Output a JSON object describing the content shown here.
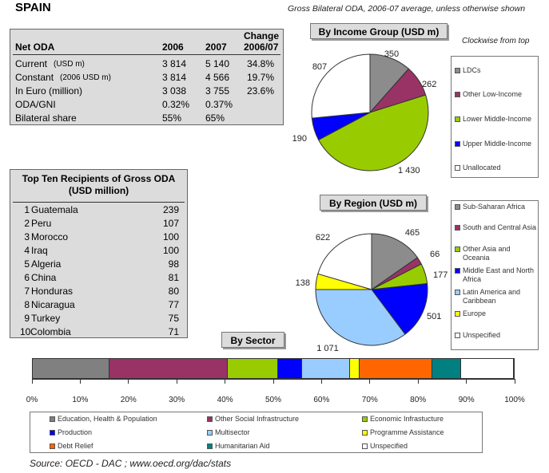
{
  "header": {
    "country": "SPAIN",
    "subtitle": "Gross Bilateral ODA, 2006-07 average, unless otherwise shown",
    "clockwise_note": "Clockwise from top"
  },
  "net_oda": {
    "title": "Net ODA",
    "col_2006": "2006",
    "col_2007": "2007",
    "col_change_1": "Change",
    "col_change_2": "2006/07",
    "rows": [
      {
        "label": "Current",
        "unit": "(USD m)",
        "v2006": "3 814",
        "v2007": "5 140",
        "change": "34.8%"
      },
      {
        "label": "Constant",
        "unit": "(2006 USD m)",
        "v2006": "3 814",
        "v2007": "4 566",
        "change": "19.7%"
      },
      {
        "label": "In Euro (million)",
        "unit": "",
        "v2006": "3 038",
        "v2007": "3 755",
        "change": "23.6%"
      },
      {
        "label": "ODA/GNI",
        "unit": "",
        "v2006": "0.32%",
        "v2007": "0.37%",
        "change": ""
      },
      {
        "label": "Bilateral share",
        "unit": "",
        "v2006": "55%",
        "v2007": "65%",
        "change": ""
      }
    ]
  },
  "top_recipients": {
    "title_1": "Top Ten Recipients of Gross ODA",
    "title_2": "(USD million)",
    "rows": [
      {
        "rank": "1",
        "name": "Guatemala",
        "value": "239"
      },
      {
        "rank": "2",
        "name": "Peru",
        "value": "107"
      },
      {
        "rank": "3",
        "name": "Morocco",
        "value": "100"
      },
      {
        "rank": "4",
        "name": "Iraq",
        "value": "100"
      },
      {
        "rank": "5",
        "name": "Algeria",
        "value": "98"
      },
      {
        "rank": "6",
        "name": "China",
        "value": "81"
      },
      {
        "rank": "7",
        "name": "Honduras",
        "value": "80"
      },
      {
        "rank": "8",
        "name": "Nicaragua",
        "value": "77"
      },
      {
        "rank": "9",
        "name": "Turkey",
        "value": "75"
      },
      {
        "rank": "10",
        "name": "Colombia",
        "value": "71"
      }
    ]
  },
  "chart_data": [
    {
      "type": "pie",
      "title": "By Income Group (USD m)",
      "direction": "clockwise-from-top",
      "slices": [
        {
          "name": "LDCs",
          "value": 350,
          "label": "350",
          "color": "#8c8c8c"
        },
        {
          "name": "Other Low-Income",
          "value": 262,
          "label": "262",
          "color": "#993366"
        },
        {
          "name": "Lower Middle-Income",
          "value": 1430,
          "label": "1 430",
          "color": "#99cc00"
        },
        {
          "name": "Upper Middle-Income",
          "value": 190,
          "label": "190",
          "color": "#0000ff"
        },
        {
          "name": "Unallocated",
          "value": 807,
          "label": "807",
          "color": "#ffffff"
        }
      ],
      "legend_position": "right"
    },
    {
      "type": "pie",
      "title": "By Region (USD m)",
      "direction": "clockwise-from-top",
      "slices": [
        {
          "name": "Sub-Saharan Africa",
          "value": 465,
          "label": "465",
          "color": "#8c8c8c"
        },
        {
          "name": "South and Central Asia",
          "value": 66,
          "label": "66",
          "color": "#993366"
        },
        {
          "name": "Other Asia and Oceania",
          "value": 177,
          "label": "177",
          "color": "#99cc00"
        },
        {
          "name": "Middle East and North Africa",
          "value": 501,
          "label": "501",
          "color": "#0000ff"
        },
        {
          "name": "Latin America and Caribbean",
          "value": 1071,
          "label": "1 071",
          "color": "#99ccff"
        },
        {
          "name": "Europe",
          "value": 138,
          "label": "138",
          "color": "#ffff00"
        },
        {
          "name": "Unspecified",
          "value": 622,
          "label": "622",
          "color": "#ffffff"
        }
      ],
      "legend_position": "right"
    },
    {
      "type": "bar",
      "orientation": "horizontal-stacked-100",
      "title": "By Sector",
      "ticks": [
        "0%",
        "10%",
        "20%",
        "30%",
        "40%",
        "50%",
        "60%",
        "70%",
        "80%",
        "90%",
        "100%"
      ],
      "xlim": [
        0,
        100
      ],
      "series": [
        {
          "name": "Education, Health & Population",
          "value": 16,
          "color": "#808080"
        },
        {
          "name": "Other Social Infrastructure",
          "value": 24.5,
          "color": "#993366"
        },
        {
          "name": "Economic Infrastucture",
          "value": 10.5,
          "color": "#99cc00"
        },
        {
          "name": "Production",
          "value": 5,
          "color": "#0000ff"
        },
        {
          "name": "Multisector",
          "value": 10,
          "color": "#99ccff"
        },
        {
          "name": "Programme Assistance",
          "value": 2,
          "color": "#ffff00"
        },
        {
          "name": "Debt Relief",
          "value": 15,
          "color": "#ff6600"
        },
        {
          "name": "Humanitarian Aid",
          "value": 6,
          "color": "#008080"
        },
        {
          "name": "Unspecified",
          "value": 11,
          "color": "#ffffff"
        }
      ],
      "legend_position": "bottom"
    }
  ],
  "income_legend": [
    {
      "label": "LDCs",
      "color": "#8c8c8c"
    },
    {
      "label": "Other Low-Income",
      "color": "#993366"
    },
    {
      "label": "Lower Middle-Income",
      "color": "#99cc00"
    },
    {
      "label": "Upper Middle-Income",
      "color": "#0000ff"
    },
    {
      "label": "Unallocated",
      "color": "#ffffff"
    }
  ],
  "region_legend": [
    {
      "label": "Sub-Saharan Africa",
      "color": "#8c8c8c"
    },
    {
      "label": "South and Central Asia",
      "color": "#993366"
    },
    {
      "label": "Other Asia and Oceania",
      "color": "#99cc00"
    },
    {
      "label": "Middle East and North Africa",
      "color": "#0000ff"
    },
    {
      "label": "Latin America and Caribbean",
      "color": "#99ccff"
    },
    {
      "label": "Europe",
      "color": "#ffff00"
    },
    {
      "label": "Unspecified",
      "color": "#ffffff"
    }
  ],
  "footer": {
    "source": "Source:   OECD - DAC ; www.oecd.org/dac/stats"
  }
}
